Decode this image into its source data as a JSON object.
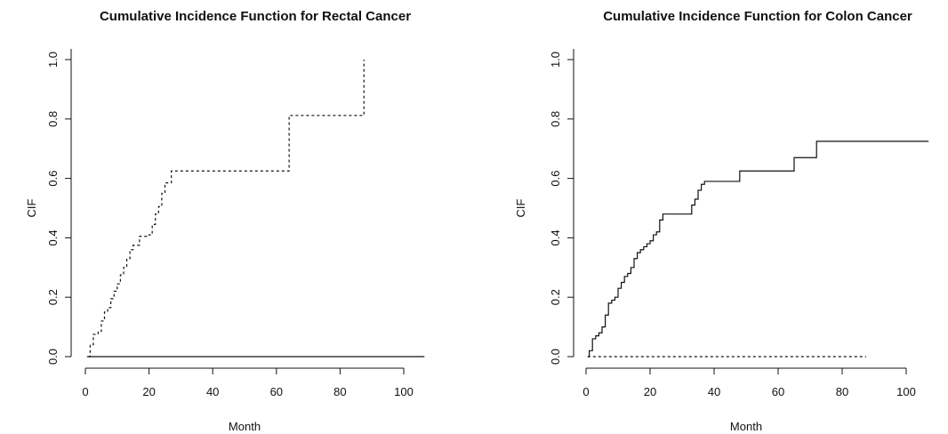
{
  "chart_data": [
    {
      "type": "line",
      "step": true,
      "title": "Cumulative Incidence Function for Rectal Cancer",
      "xlabel": "Month",
      "ylabel": "CIF",
      "xlim": [
        0,
        110
      ],
      "ylim": [
        0,
        1.0
      ],
      "xticks": [
        0,
        20,
        40,
        60,
        80,
        100
      ],
      "yticks": [
        0.0,
        0.2,
        0.4,
        0.6,
        0.8,
        1.0
      ],
      "x_tick_labels": [
        "0",
        "20",
        "40",
        "60",
        "80",
        "100"
      ],
      "y_tick_labels": [
        "0.0",
        "0.2",
        "0.4",
        "0.6",
        "0.8",
        "1.0"
      ],
      "grid": false,
      "series": [
        {
          "line_style": "solid",
          "x": [
            0.5,
            106.5
          ],
          "y": [
            0.0,
            0.0
          ]
        },
        {
          "line_style": "dashed",
          "x": [
            1,
            1.5,
            2.5,
            4,
            5,
            6,
            7,
            8,
            9,
            10,
            11,
            12,
            13,
            14,
            15,
            17,
            20,
            21,
            22,
            23,
            24,
            25,
            27,
            64,
            87.5
          ],
          "y": [
            0.0,
            0.04,
            0.075,
            0.085,
            0.12,
            0.15,
            0.165,
            0.195,
            0.22,
            0.245,
            0.275,
            0.3,
            0.33,
            0.36,
            0.375,
            0.405,
            0.41,
            0.445,
            0.48,
            0.505,
            0.55,
            0.585,
            0.625,
            0.812,
            1.0
          ]
        }
      ]
    },
    {
      "type": "line",
      "step": true,
      "title": "Cumulative Incidence Function for Colon Cancer",
      "xlabel": "Month",
      "ylabel": "CIF",
      "xlim": [
        0,
        110
      ],
      "ylim": [
        0,
        1.0
      ],
      "xticks": [
        0,
        20,
        40,
        60,
        80,
        100
      ],
      "yticks": [
        0.0,
        0.2,
        0.4,
        0.6,
        0.8,
        1.0
      ],
      "x_tick_labels": [
        "0",
        "20",
        "40",
        "60",
        "80",
        "100"
      ],
      "y_tick_labels": [
        "0.0",
        "0.2",
        "0.4",
        "0.6",
        "0.8",
        "1.0"
      ],
      "grid": false,
      "series": [
        {
          "line_style": "solid",
          "x": [
            0.5,
            1,
            2,
            3,
            4,
            5,
            6,
            7,
            8,
            9,
            10,
            11,
            12,
            13,
            14,
            15,
            16,
            17,
            18,
            19,
            20,
            21,
            22,
            23,
            24,
            26,
            33,
            34,
            35,
            36,
            37,
            38,
            48,
            65,
            72,
            107
          ],
          "y": [
            0.0,
            0.02,
            0.06,
            0.07,
            0.08,
            0.1,
            0.14,
            0.18,
            0.19,
            0.2,
            0.23,
            0.25,
            0.27,
            0.28,
            0.3,
            0.33,
            0.35,
            0.36,
            0.37,
            0.38,
            0.39,
            0.41,
            0.42,
            0.46,
            0.48,
            0.48,
            0.51,
            0.53,
            0.56,
            0.58,
            0.59,
            0.59,
            0.625,
            0.67,
            0.725,
            0.725
          ]
        },
        {
          "line_style": "dashed",
          "x": [
            0.5,
            87.5
          ],
          "y": [
            0.0,
            0.0
          ]
        }
      ]
    }
  ]
}
